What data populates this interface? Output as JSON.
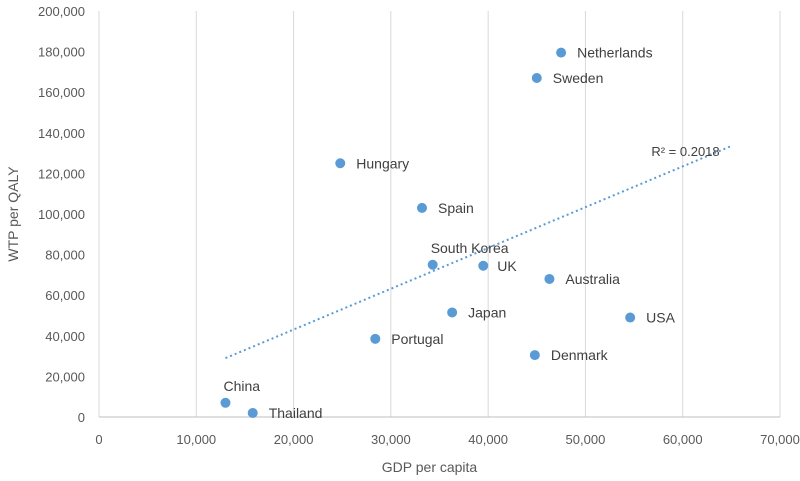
{
  "chart_data": {
    "type": "scatter",
    "xlabel": "GDP per capita",
    "ylabel": "WTP per QALY",
    "xlim": [
      0,
      70000
    ],
    "ylim": [
      0,
      200000
    ],
    "x_ticks": [
      "0",
      "10,000",
      "20,000",
      "30,000",
      "40,000",
      "50,000",
      "60,000",
      "70,000"
    ],
    "y_ticks": [
      "0",
      "20,000",
      "40,000",
      "60,000",
      "80,000",
      "100,000",
      "120,000",
      "140,000",
      "160,000",
      "180,000",
      "200,000"
    ],
    "grid": "vertical",
    "marker_color": "#5b9bd5",
    "points": [
      {
        "label": "Netherlands",
        "x": 47500,
        "y": 179500
      },
      {
        "label": "Sweden",
        "x": 45000,
        "y": 167000
      },
      {
        "label": "Hungary",
        "x": 24800,
        "y": 125000
      },
      {
        "label": "Spain",
        "x": 33200,
        "y": 103000
      },
      {
        "label": "South Korea",
        "x": 34300,
        "y": 75000
      },
      {
        "label": "UK",
        "x": 39500,
        "y": 74500
      },
      {
        "label": "Australia",
        "x": 46300,
        "y": 68000
      },
      {
        "label": "Japan",
        "x": 36300,
        "y": 51500
      },
      {
        "label": "USA",
        "x": 54600,
        "y": 49000
      },
      {
        "label": "Portugal",
        "x": 28400,
        "y": 38500
      },
      {
        "label": "Denmark",
        "x": 44800,
        "y": 30500
      },
      {
        "label": "China",
        "x": 13000,
        "y": 7000
      },
      {
        "label": "Thailand",
        "x": 15800,
        "y": 2000
      }
    ],
    "trendline": {
      "type": "linear",
      "style": "dotted",
      "color": "#5b9bd5",
      "x_start": 13000,
      "y_start": 29000,
      "x_end": 65000,
      "y_end": 133500,
      "r2_label": "R² = 0.2018"
    }
  }
}
